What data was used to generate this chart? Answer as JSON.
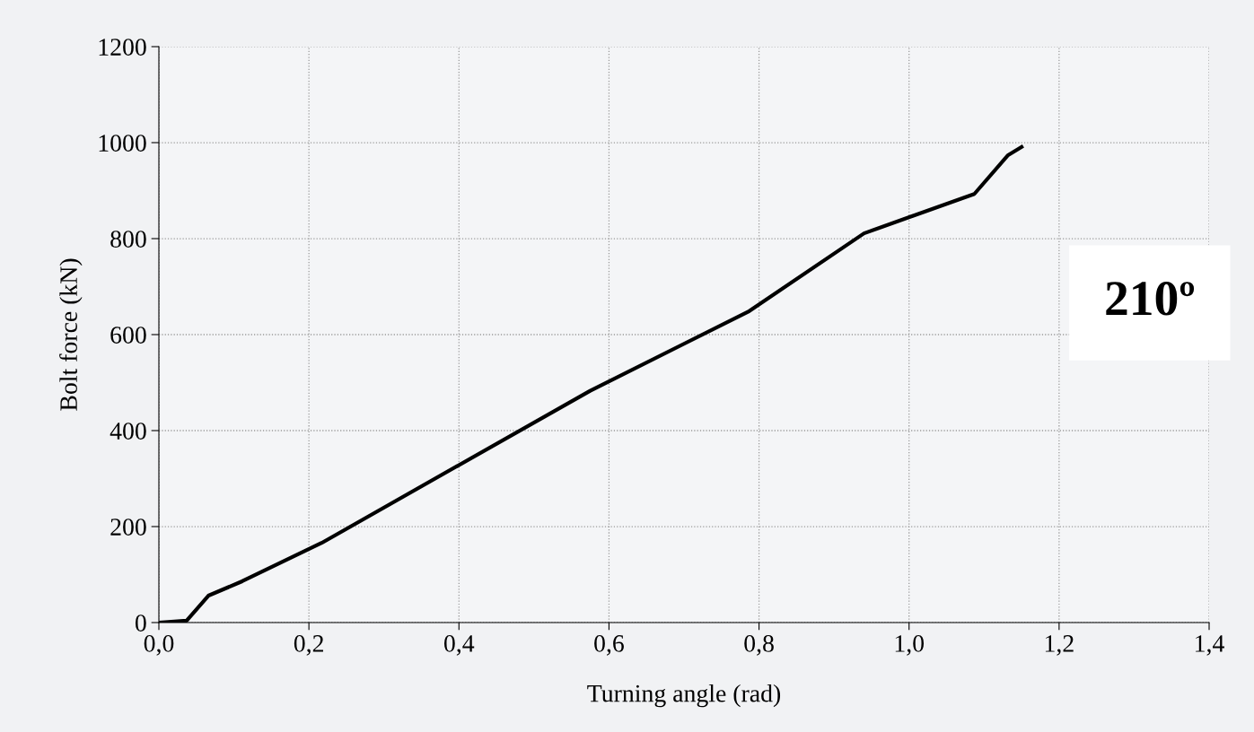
{
  "chart_data": {
    "type": "line",
    "xlabel": "Turning angle (rad)",
    "ylabel": "Bolt force (kN)",
    "annotations": [
      "210º"
    ],
    "series": [
      {
        "color": "#000000",
        "x": [
          0.0,
          0.037,
          0.066,
          0.111,
          0.217,
          0.575,
          0.787,
          0.94,
          1.087,
          1.132,
          1.15
        ],
        "values": [
          0,
          4,
          56,
          86,
          166,
          483,
          649,
          811,
          893,
          974,
          991
        ]
      }
    ],
    "xlim": [
      0,
      1.4
    ],
    "ylim": [
      0,
      1200
    ],
    "xticks": [
      {
        "value": 0,
        "label": "0,0"
      },
      {
        "value": 0.2,
        "label": "0,2"
      },
      {
        "value": 0.4,
        "label": "0,4"
      },
      {
        "value": 0.6,
        "label": "0,6"
      },
      {
        "value": 0.8,
        "label": "0,8"
      },
      {
        "value": 1.0,
        "label": "1,0"
      },
      {
        "value": 1.2,
        "label": "1,2"
      },
      {
        "value": 1.4,
        "label": "1,4"
      }
    ],
    "yticks": [
      0,
      200,
      400,
      600,
      800,
      1000,
      1200
    ],
    "grid": true,
    "legend": false,
    "marker": "none",
    "line_style": "solid"
  }
}
